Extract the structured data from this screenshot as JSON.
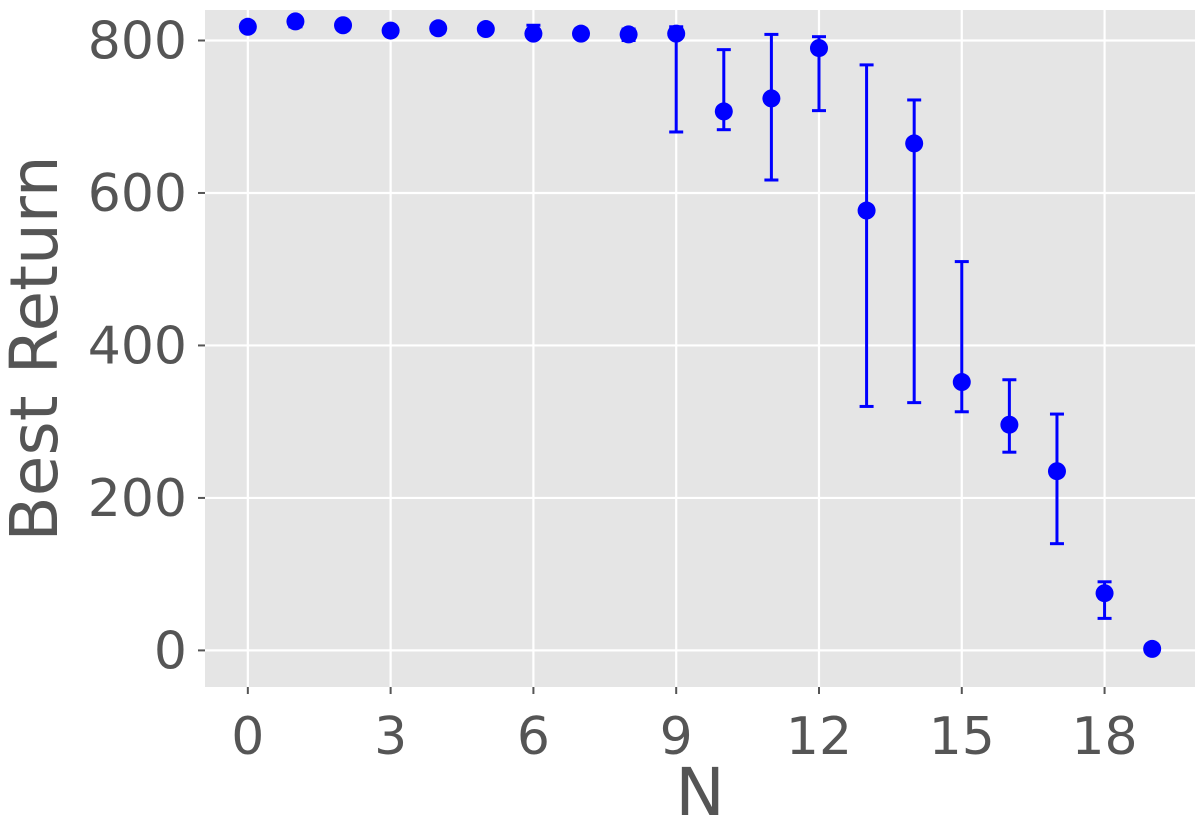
{
  "chart_data": {
    "type": "scatter",
    "title": "",
    "xlabel": "N",
    "ylabel": "Best Return",
    "xlim": [
      -0.9,
      19.9
    ],
    "ylim": [
      -48,
      840
    ],
    "xticks": [
      0,
      3,
      6,
      9,
      12,
      15,
      18
    ],
    "yticks": [
      0,
      200,
      400,
      600,
      800
    ],
    "grid": true,
    "colors": {
      "background": "#E5E5E5",
      "grid": "#FFFFFF",
      "series": "#0000FF",
      "text": "#555555"
    },
    "series": [
      {
        "x": [
          0,
          1,
          2,
          3,
          4,
          5,
          6,
          7,
          8,
          9,
          10,
          11,
          12,
          13,
          14,
          15,
          16,
          17,
          18,
          19
        ],
        "y": [
          818,
          825,
          820,
          813,
          816,
          815,
          809,
          809,
          808,
          809,
          707,
          724,
          790,
          577,
          665,
          352,
          296,
          235,
          75,
          2
        ],
        "yerr_low": [
          816,
          818,
          818,
          810,
          810,
          812,
          804,
          804,
          800,
          680,
          683,
          617,
          708,
          320,
          325,
          313,
          260,
          140,
          42,
          0
        ],
        "yerr_high": [
          820,
          828,
          822,
          816,
          820,
          818,
          820,
          814,
          815,
          818,
          788,
          808,
          805,
          768,
          722,
          510,
          355,
          310,
          90,
          4
        ]
      }
    ]
  }
}
